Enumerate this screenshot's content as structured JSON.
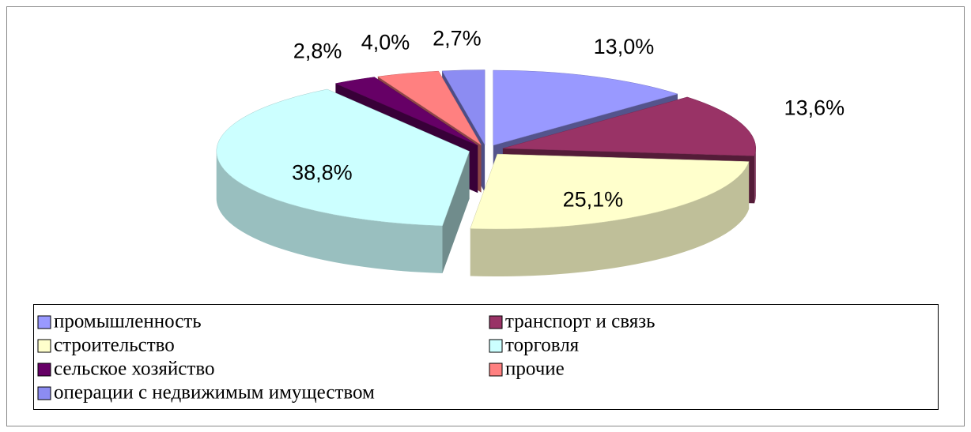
{
  "chart_data": {
    "type": "pie",
    "categories": [
      "промышленность",
      "транспорт и связь",
      "строительство",
      "торговля",
      "сельское хозяйство",
      "прочие",
      "операции с недвижимым имуществом"
    ],
    "values": [
      13.0,
      13.6,
      25.1,
      38.8,
      2.8,
      4.0,
      2.7
    ],
    "value_labels": [
      "13,0%",
      "13,6%",
      "25,1%",
      "38,8%",
      "2,8%",
      "4,0%",
      "2,7%"
    ],
    "colors": [
      "#9999ff",
      "#993366",
      "#ffffcc",
      "#ccffff",
      "#660066",
      "#ff8080",
      "#8c8cf2"
    ],
    "legend": "bottom"
  }
}
